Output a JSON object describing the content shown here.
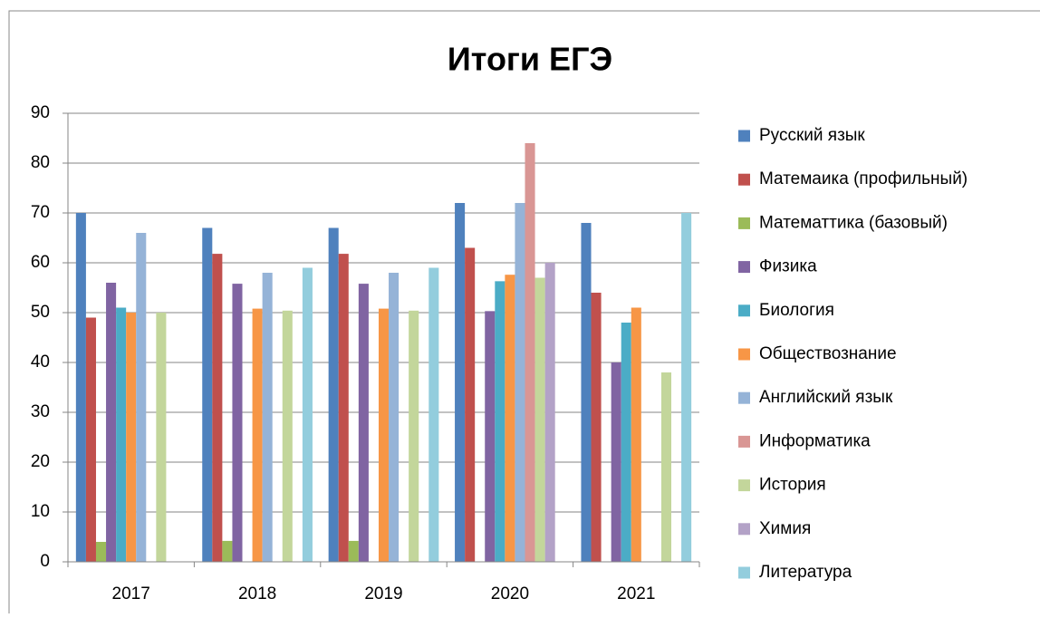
{
  "chart_data": {
    "type": "bar",
    "title": "Итоги ЕГЭ",
    "categories": [
      "2017",
      "2018",
      "2019",
      "2020",
      "2021"
    ],
    "series": [
      {
        "name": "Русский язык",
        "color": "#4F81BD",
        "values": [
          70,
          67,
          67,
          72,
          68
        ]
      },
      {
        "name": "Матемаика (профильный)",
        "color": "#C0504D",
        "values": [
          49,
          61.8,
          61.8,
          63,
          54
        ]
      },
      {
        "name": "Математтика (базовый)",
        "color": "#9BBB59",
        "values": [
          4,
          4.2,
          4.2,
          null,
          null
        ]
      },
      {
        "name": "Физика",
        "color": "#8064A2",
        "values": [
          56,
          55.8,
          55.8,
          50.3,
          40
        ]
      },
      {
        "name": "Биология",
        "color": "#4BACC6",
        "values": [
          51,
          null,
          null,
          56.3,
          48
        ]
      },
      {
        "name": "Обществознание",
        "color": "#F79646",
        "values": [
          50,
          50.8,
          50.8,
          57.6,
          51
        ]
      },
      {
        "name": "Английский язык",
        "color": "#95B3D7",
        "values": [
          66,
          58,
          58,
          72,
          null
        ]
      },
      {
        "name": "Информатика",
        "color": "#D99694",
        "values": [
          null,
          null,
          null,
          84,
          null
        ]
      },
      {
        "name": "История",
        "color": "#C3D69B",
        "values": [
          50,
          50.4,
          50.4,
          57,
          38
        ]
      },
      {
        "name": "Химия",
        "color": "#B3A2C7",
        "values": [
          null,
          null,
          null,
          60,
          null
        ]
      },
      {
        "name": "Литература",
        "color": "#93CDDD",
        "values": [
          null,
          59,
          59,
          null,
          70
        ]
      }
    ],
    "ylim": [
      0,
      90
    ],
    "yticks": [
      0,
      10,
      20,
      30,
      40,
      50,
      60,
      70,
      80,
      90
    ],
    "grid": true,
    "legend": "right"
  }
}
